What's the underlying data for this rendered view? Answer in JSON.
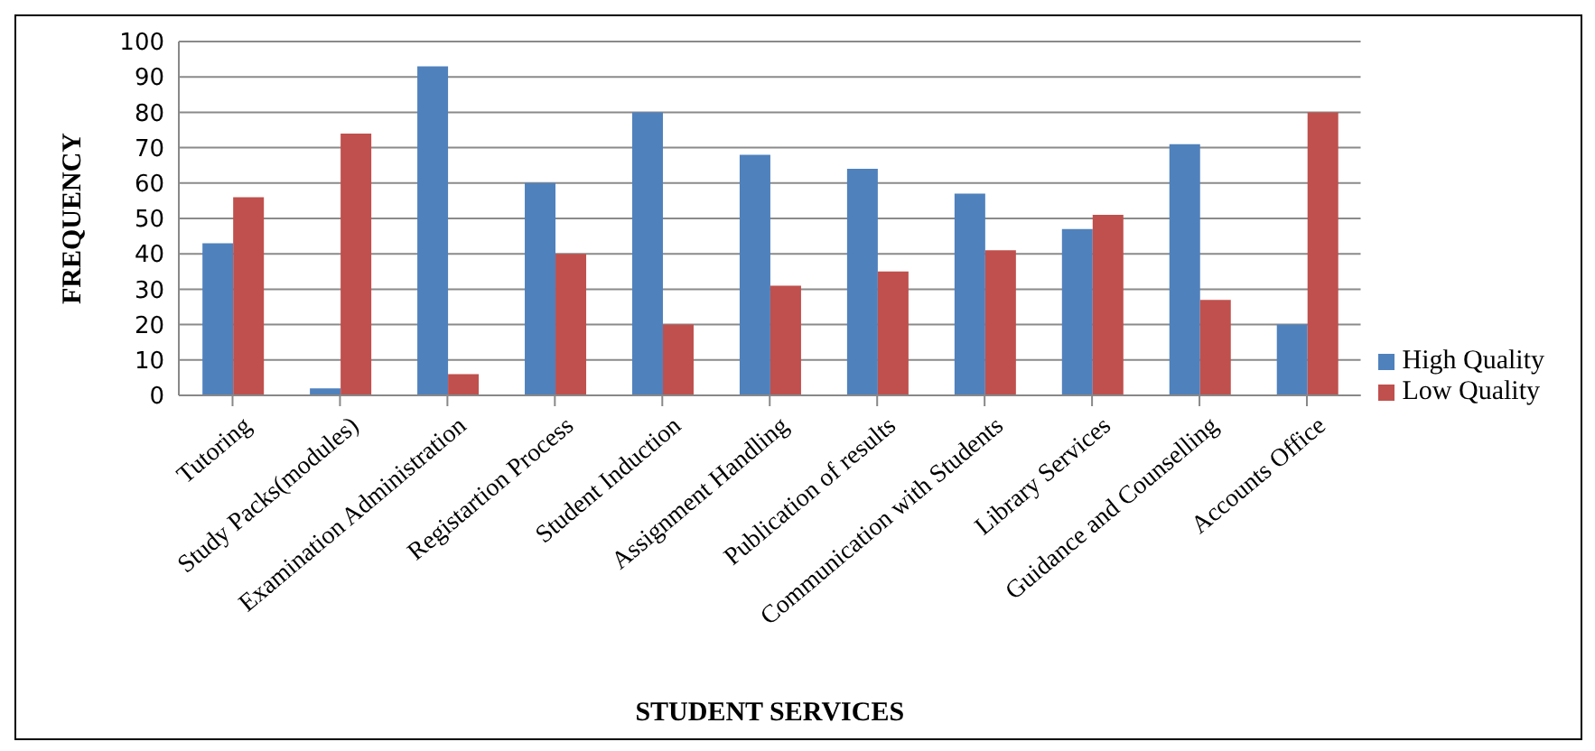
{
  "chart_data": {
    "type": "bar",
    "xlabel": "STUDENT SERVICES",
    "ylabel": "FREQUENCY",
    "categories": [
      "Tutoring",
      "Study Packs(modules)",
      "Examination Administration",
      "Registartion Process",
      "Student Induction",
      "Assignment Handling",
      "Publication of results",
      "Communication with Students",
      "Library Services",
      "Guidance and Counselling",
      "Accounts Office"
    ],
    "series": [
      {
        "name": "High Quality",
        "color": "#4f81bd",
        "values": [
          43,
          2,
          93,
          60,
          80,
          68,
          64,
          57,
          47,
          71,
          20
        ]
      },
      {
        "name": "Low Quality",
        "color": "#c0504d",
        "values": [
          56,
          74,
          6,
          40,
          20,
          31,
          35,
          41,
          51,
          27,
          80
        ]
      }
    ],
    "ylim": [
      0,
      100
    ],
    "yticks": [
      0,
      10,
      20,
      30,
      40,
      50,
      60,
      70,
      80,
      90,
      100
    ],
    "grid": "y",
    "legend": "right"
  }
}
